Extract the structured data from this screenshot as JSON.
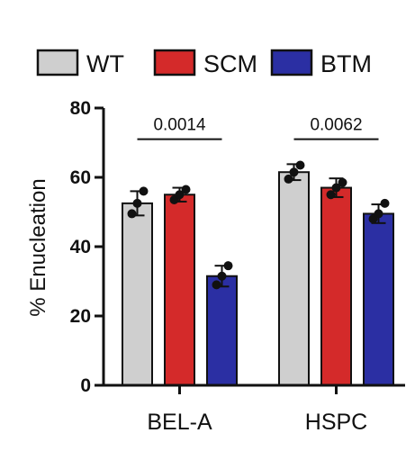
{
  "chart_data": {
    "type": "bar",
    "categories": [
      "BEL-A",
      "HSPC"
    ],
    "series": [
      {
        "name": "WT",
        "color": "#cfcfcf",
        "values": [
          52.5,
          61.5
        ],
        "errors": [
          3.5,
          2.3
        ],
        "points": [
          [
            49.5,
            52.5,
            56.0
          ],
          [
            59.5,
            61.5,
            63.5
          ]
        ]
      },
      {
        "name": "SCM",
        "color": "#d42a2a",
        "values": [
          55.0,
          57.0
        ],
        "errors": [
          2.0,
          2.7
        ],
        "points": [
          [
            53.5,
            55.0,
            56.5
          ],
          [
            55.0,
            57.0,
            58.5
          ]
        ]
      },
      {
        "name": "BTM",
        "color": "#2b2fa3",
        "values": [
          31.5,
          49.5
        ],
        "errors": [
          3.0,
          2.7
        ],
        "points": [
          [
            29.0,
            31.5,
            34.5
          ],
          [
            48.0,
            49.5,
            52.5
          ]
        ]
      }
    ],
    "ylabel": "% Enucleation",
    "xlabel": "",
    "ylim": [
      0,
      80
    ],
    "yticks": [
      0,
      20,
      40,
      60,
      80
    ],
    "legend_position": "top",
    "grid": false,
    "annotations": [
      {
        "text": "0.0014",
        "from_series": "WT",
        "to_series": "BTM",
        "category": "BEL-A",
        "y": 71
      },
      {
        "text": "0.0062",
        "from_series": "WT",
        "to_series": "BTM",
        "category": "HSPC",
        "y": 71
      }
    ]
  }
}
